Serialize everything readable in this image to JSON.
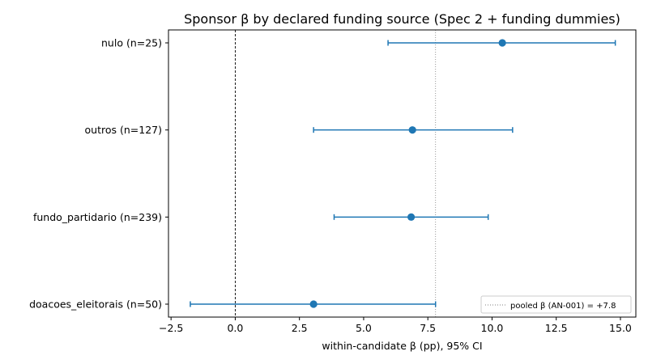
{
  "chart_data": {
    "type": "scatter",
    "title": "Sponsor β by declared funding source (Spec 2 + funding dummies)",
    "xlabel": "within-candidate β (pp), 95% CI",
    "ylabel": "",
    "xlim": [
      -2.6,
      15.6
    ],
    "xticks": [
      -2.5,
      0.0,
      2.5,
      5.0,
      7.5,
      10.0,
      12.5,
      15.0
    ],
    "xtick_labels": [
      "−2.5",
      "0.0",
      "2.5",
      "5.0",
      "7.5",
      "10.0",
      "12.5",
      "15.0"
    ],
    "categories": [
      "nulo (n=25)",
      "outros (n=127)",
      "fundo_partidario (n=239)",
      "doacoes_eleitorais (n=50)"
    ],
    "series": [
      {
        "estimate": [
          10.4,
          6.9,
          6.85,
          3.05
        ],
        "ci_low": [
          5.95,
          3.05,
          3.85,
          -1.75
        ],
        "ci_high": [
          14.8,
          10.8,
          9.85,
          7.8
        ],
        "color": "#1f77b4"
      }
    ],
    "reference_lines": [
      {
        "x": 0.0,
        "style": "dashed",
        "color": "#000000"
      },
      {
        "x": 7.8,
        "style": "dotted",
        "color": "#808080",
        "label": "pooled β (AN-001) = +7.8"
      }
    ],
    "grid": false,
    "legend_position": "bottom-right"
  }
}
